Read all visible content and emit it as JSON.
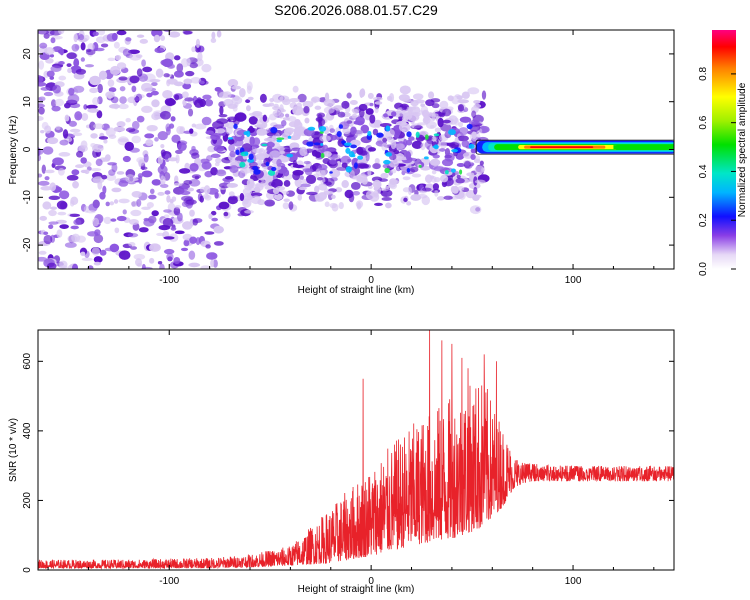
{
  "title": "S206.2026.088.01.57.C29",
  "colors": {
    "snr_line": "#e8222a",
    "axis": "#000000",
    "spectro_light": "#d8c6f2",
    "spectro_mid": "#8c55e0",
    "spectro_dark": "#5a10c8"
  },
  "chart_data": [
    {
      "type": "heatmap",
      "name": "spectrogram",
      "xlabel": "Height of straight line (km)",
      "ylabel": "Frequency (Hz)",
      "xlim": [
        -165,
        150
      ],
      "ylim": [
        -25,
        25
      ],
      "xticks": [
        -100,
        0,
        100
      ],
      "yticks": [
        -20,
        -10,
        0,
        10,
        20
      ],
      "colorbar": {
        "label": "Normalized spectral amplitude",
        "range": [
          0,
          1
        ],
        "ticks": [
          "0.0",
          "0.2",
          "0.4",
          "0.6",
          "0.8"
        ]
      },
      "carrier_band": {
        "freq_hz": 0.5,
        "x_start": 52,
        "x_end": 150,
        "peak_x": 100,
        "peak_amplitude": 1.0
      }
    },
    {
      "type": "line",
      "name": "snr",
      "xlabel": "Height of straight line (km)",
      "ylabel": "SNR (10 * v/v)",
      "xlim": [
        -165,
        150
      ],
      "ylim": [
        0,
        690
      ],
      "xticks": [
        -100,
        0,
        100
      ],
      "yticks": [
        0,
        200,
        400,
        600
      ],
      "envelope": {
        "x": [
          -165,
          -120,
          -80,
          -60,
          -40,
          -20,
          0,
          20,
          40,
          55,
          65,
          70,
          75,
          80,
          100,
          150
        ],
        "low": [
          5,
          5,
          5,
          8,
          12,
          20,
          40,
          70,
          90,
          120,
          180,
          230,
          250,
          255,
          255,
          255
        ],
        "high": [
          30,
          30,
          35,
          45,
          70,
          180,
          300,
          420,
          500,
          560,
          420,
          340,
          310,
          305,
          300,
          300
        ]
      },
      "spikes": [
        {
          "x": -4,
          "y": 550
        },
        {
          "x": 29,
          "y": 690
        },
        {
          "x": 35,
          "y": 660
        },
        {
          "x": 40,
          "y": 650
        },
        {
          "x": 45,
          "y": 610
        },
        {
          "x": 56,
          "y": 620
        },
        {
          "x": 62,
          "y": 600
        },
        {
          "x": 48,
          "y": 580
        }
      ]
    }
  ]
}
